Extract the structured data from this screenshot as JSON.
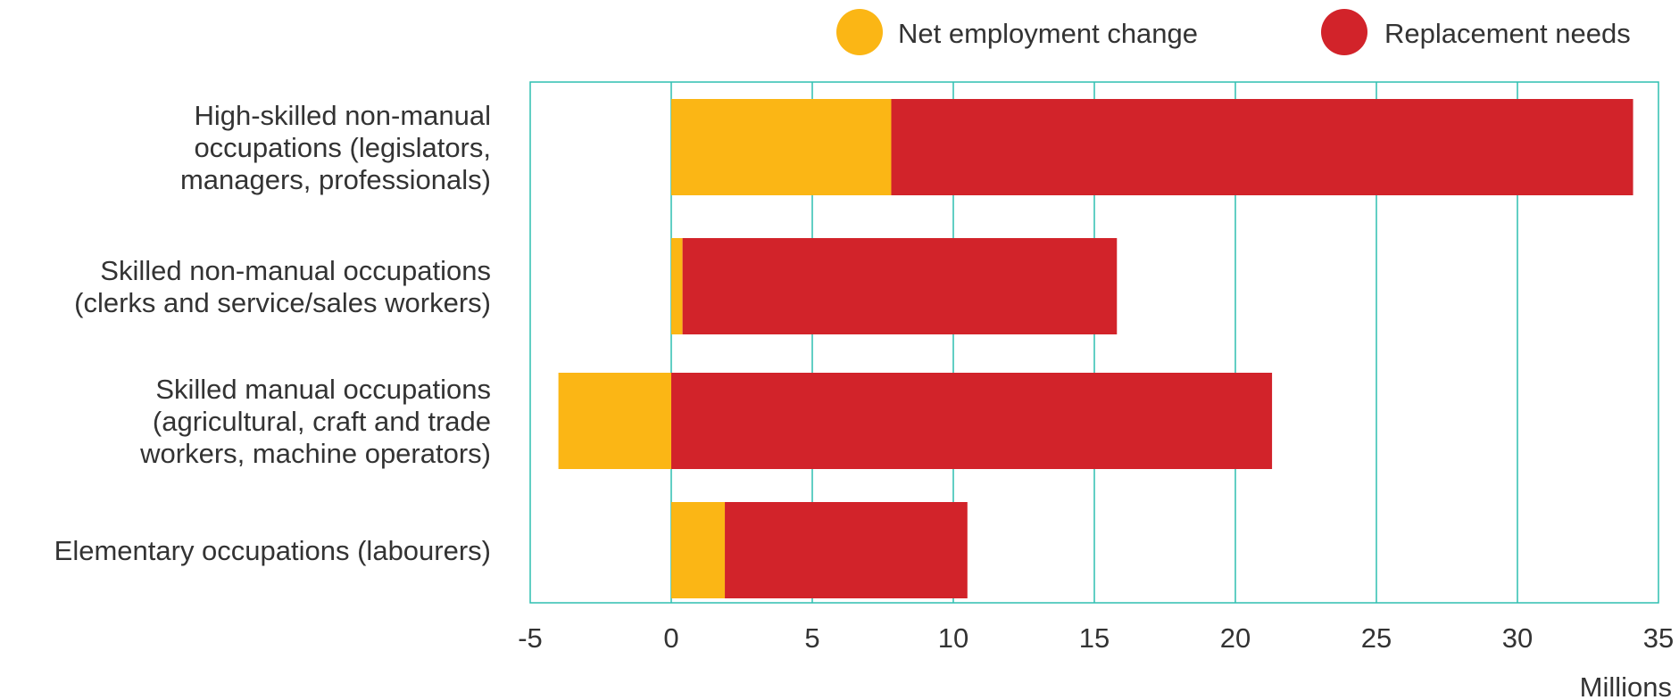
{
  "chart_data": {
    "type": "bar",
    "orientation": "horizontal",
    "stacked": true,
    "categories": [
      [
        "High-skilled non-manual",
        "occupations (legislators,",
        "managers, professionals)"
      ],
      [
        "Skilled non-manual occupations",
        "(clerks and service/sales workers)"
      ],
      [
        "Skilled manual occupations",
        "(agricultural, craft and trade",
        "workers, machine operators)"
      ],
      [
        "Elementary occupations (labourers)"
      ]
    ],
    "series": [
      {
        "name": "Net employment change",
        "values": [
          7.8,
          0.4,
          -4.0,
          1.9
        ]
      },
      {
        "name": "Replacement needs",
        "values": [
          26.3,
          15.4,
          21.3,
          8.6
        ]
      }
    ],
    "xlim": [
      -5,
      35
    ],
    "xticks": [
      -5,
      0,
      5,
      10,
      15,
      20,
      25,
      30,
      35
    ],
    "xlabel": "Millions",
    "legend_position": "top-right",
    "grid": true,
    "colors": {
      "net": "#fbb615",
      "replacement": "#d2232a",
      "grid": "#2fbfb0",
      "text": "#333333"
    }
  }
}
